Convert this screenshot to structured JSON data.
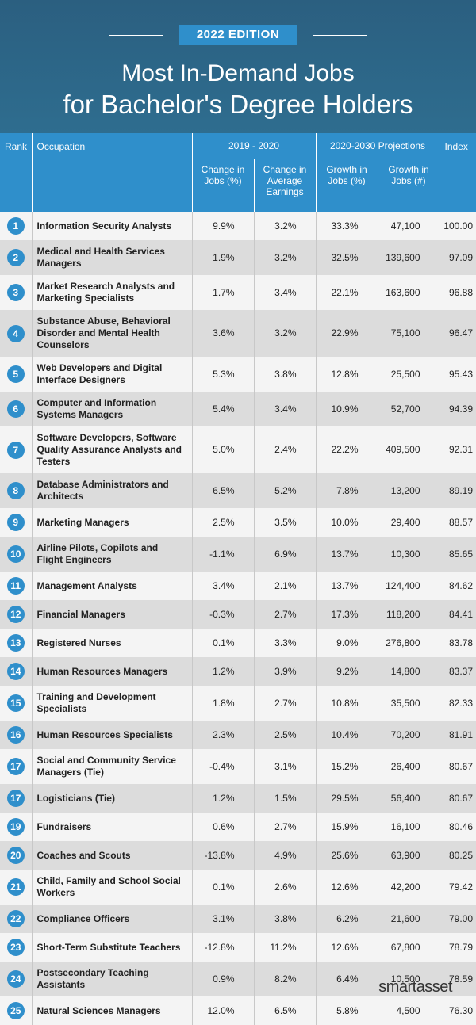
{
  "header": {
    "edition": "2022 EDITION",
    "title_lines": [
      "Most In-Demand Jobs",
      "for Bachelor's Degree Holders"
    ]
  },
  "table": {
    "columns": {
      "rank": "Rank",
      "occupation": "Occupation",
      "group1": "2019 - 2020",
      "group2": "2020-2030 Projections",
      "index": "Index",
      "sub": [
        "Change in Jobs (%)",
        "Change in Average Earnings",
        "Growth in Jobs (%)",
        "Growth in Jobs (#)"
      ]
    },
    "rows": [
      [
        "1",
        "Information Security Analysts",
        "9.9%",
        "3.2%",
        "33.3%",
        "47,100",
        "100.00"
      ],
      [
        "2",
        "Medical and Health Services Managers",
        "1.9%",
        "3.2%",
        "32.5%",
        "139,600",
        "97.09"
      ],
      [
        "3",
        "Market Research Analysts and Marketing Specialists",
        "1.7%",
        "3.4%",
        "22.1%",
        "163,600",
        "96.88"
      ],
      [
        "4",
        "Substance Abuse, Behavioral Disorder and Mental Health Counselors",
        "3.6%",
        "3.2%",
        "22.9%",
        "75,100",
        "96.47"
      ],
      [
        "5",
        "Web Developers and Digital Interface Designers",
        "5.3%",
        "3.8%",
        "12.8%",
        "25,500",
        "95.43"
      ],
      [
        "6",
        "Computer and Information Systems Managers",
        "5.4%",
        "3.4%",
        "10.9%",
        "52,700",
        "94.39"
      ],
      [
        "7",
        "Software Developers, Software Quality Assurance Analysts and Testers",
        "5.0%",
        "2.4%",
        "22.2%",
        "409,500",
        "92.31"
      ],
      [
        "8",
        "Database Administrators and Architects",
        "6.5%",
        "5.2%",
        "7.8%",
        "13,200",
        "89.19"
      ],
      [
        "9",
        "Marketing Managers",
        "2.5%",
        "3.5%",
        "10.0%",
        "29,400",
        "88.57"
      ],
      [
        "10",
        "Airline Pilots, Copilots and Flight Engineers",
        "-1.1%",
        "6.9%",
        "13.7%",
        "10,300",
        "85.65"
      ],
      [
        "11",
        "Management Analysts",
        "3.4%",
        "2.1%",
        "13.7%",
        "124,400",
        "84.62"
      ],
      [
        "12",
        "Financial Managers",
        "-0.3%",
        "2.7%",
        "17.3%",
        "118,200",
        "84.41"
      ],
      [
        "13",
        "Registered Nurses",
        "0.1%",
        "3.3%",
        "9.0%",
        "276,800",
        "83.78"
      ],
      [
        "14",
        "Human Resources Managers",
        "1.2%",
        "3.9%",
        "9.2%",
        "14,800",
        "83.37"
      ],
      [
        "15",
        "Training and Development Specialists",
        "1.8%",
        "2.7%",
        "10.8%",
        "35,500",
        "82.33"
      ],
      [
        "16",
        "Human Resources Specialists",
        "2.3%",
        "2.5%",
        "10.4%",
        "70,200",
        "81.91"
      ],
      [
        "17",
        "Social and Community Service Managers (Tie)",
        "-0.4%",
        "3.1%",
        "15.2%",
        "26,400",
        "80.67"
      ],
      [
        "17",
        "Logisticians (Tie)",
        "1.2%",
        "1.5%",
        "29.5%",
        "56,400",
        "80.67"
      ],
      [
        "19",
        "Fundraisers",
        "0.6%",
        "2.7%",
        "15.9%",
        "16,100",
        "80.46"
      ],
      [
        "20",
        "Coaches and Scouts",
        "-13.8%",
        "4.9%",
        "25.6%",
        "63,900",
        "80.25"
      ],
      [
        "21",
        "Child, Family and School Social Workers",
        "0.1%",
        "2.6%",
        "12.6%",
        "42,200",
        "79.42"
      ],
      [
        "22",
        "Compliance Officers",
        "3.1%",
        "3.8%",
        "6.2%",
        "21,600",
        "79.00"
      ],
      [
        "23",
        "Short-Term Substitute Teachers",
        "-12.8%",
        "11.2%",
        "12.6%",
        "67,800",
        "78.79"
      ],
      [
        "24",
        "Postsecondary Teaching Assistants",
        "0.9%",
        "8.2%",
        "6.4%",
        "10,500",
        "78.59"
      ],
      [
        "25",
        "Natural Sciences Managers",
        "12.0%",
        "6.5%",
        "5.8%",
        "4,500",
        "76.30"
      ]
    ]
  },
  "footer": {
    "logo": "smartasset"
  }
}
